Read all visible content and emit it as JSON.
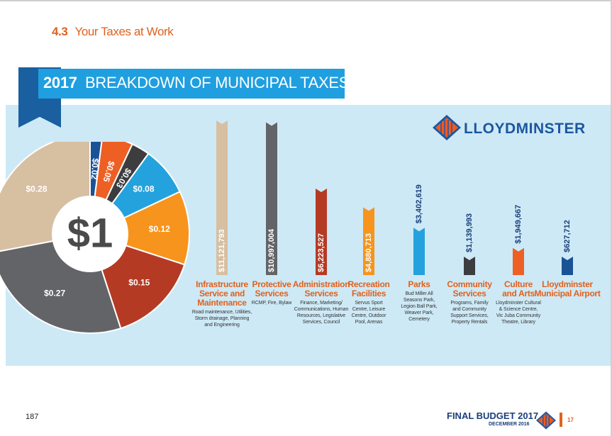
{
  "section": {
    "number": "4.3",
    "title": "Your Taxes at Work"
  },
  "header": {
    "year": "2017",
    "title": "BREAKDOWN OF MUNICIPAL TAXES"
  },
  "logo": {
    "text": "LLOYDMINSTER"
  },
  "footer": {
    "page_left": "187",
    "title": "FINAL BUDGET 2017",
    "date": "DECEMBER 2016",
    "page_right": "17"
  },
  "colors": {
    "accent_orange": "#e0611d",
    "title_blue": "#1f9fe0",
    "band_blue": "#cde9f6",
    "navy": "#1d57a0"
  },
  "chart_data": [
    {
      "type": "pie",
      "center_label": "$1",
      "slices": [
        {
          "label": "$0.02",
          "value": 0.02,
          "color": "#1a5296"
        },
        {
          "label": "$0.05",
          "value": 0.05,
          "color": "#ee5f24"
        },
        {
          "label": "$0.03",
          "value": 0.03,
          "color": "#3d3d3f"
        },
        {
          "label": "$0.08",
          "value": 0.08,
          "color": "#24a2de"
        },
        {
          "label": "$0.12",
          "value": 0.12,
          "color": "#f7941d"
        },
        {
          "label": "$0.15",
          "value": 0.15,
          "color": "#b53a24"
        },
        {
          "label": "$0.27",
          "value": 0.27,
          "color": "#636467"
        },
        {
          "label": "$0.28",
          "value": 0.28,
          "color": "#d7bfa2"
        }
      ]
    },
    {
      "type": "bar",
      "categories": [
        "Infrastructure Service and Maintenance",
        "Protective Services",
        "Administration Services",
        "Recreation Facilities",
        "Parks",
        "Community Services",
        "Culture and Arts",
        "Lloydminster Municipal Airport"
      ],
      "series": [
        {
          "values": [
            11121793,
            10997004,
            6223527,
            4880713,
            3402619,
            1139993,
            1949667,
            627712
          ]
        }
      ],
      "value_labels": [
        "$11,121,793",
        "$10,997,004",
        "$6,223,527",
        "$4,880,713",
        "$3,402,619",
        "$1,139,993",
        "$1,949,667",
        "$627,712"
      ],
      "bar_colors": [
        "#d7bfa2",
        "#636467",
        "#b53a24",
        "#f7941d",
        "#24a2de",
        "#3d3d3f",
        "#ee5f24",
        "#1a5296"
      ],
      "label_lines": [
        [
          "Infrastructure",
          "Service and",
          "Maintenance"
        ],
        [
          "Protective",
          "Services"
        ],
        [
          "Administration",
          "Services"
        ],
        [
          "Recreation",
          "Facilities"
        ],
        [
          "Parks"
        ],
        [
          "Community",
          "Services"
        ],
        [
          "Culture",
          "and Arts"
        ],
        [
          "Lloydminster",
          "Municipal Airport"
        ]
      ],
      "descriptions": [
        [
          "Road maintenance, Utilities,",
          "Storm drainage, Planning",
          "and Engineering"
        ],
        [
          "RCMP, Fire, Bylaw"
        ],
        [
          "Finance, Marketing/",
          "Communications, Human",
          "Resources, Legislative",
          "Services, Council"
        ],
        [
          "Servus Sport",
          "Centre, Leisure",
          "Centre, Outdoor",
          "Pool, Arenas"
        ],
        [
          "Bud Miller All",
          "Seasons Park,",
          "Legion Ball Park,",
          "Weaver Park,",
          "Cemetery"
        ],
        [
          "Programs, Family",
          "and Community",
          "Support Services,",
          "Property Rentals"
        ],
        [
          "Lloydminster Cultural",
          "& Science Centre,",
          "Vic Juba Community",
          "Theatre, Library"
        ],
        []
      ]
    }
  ]
}
